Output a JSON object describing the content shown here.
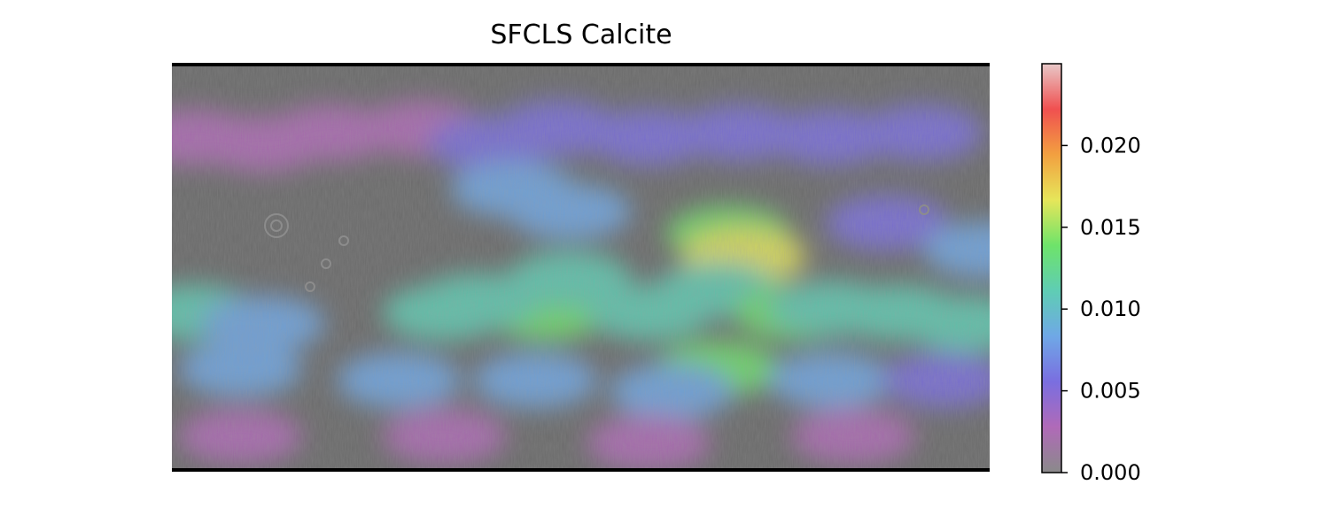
{
  "chart_data": {
    "type": "heatmap",
    "title": "SFCLS Calcite",
    "xlabel": "",
    "ylabel": "",
    "basemap": "grey shaded-relief global map",
    "colorbar": {
      "min": 0.0,
      "max": 0.025,
      "ticks": [
        0.0,
        0.005,
        0.01,
        0.015,
        0.02
      ],
      "tick_labels": [
        "0.000",
        "0.005",
        "0.010",
        "0.015",
        "0.020"
      ],
      "colormap": [
        "#8a8a8a",
        "#b06ab8",
        "#7a6ee0",
        "#6fa8e6",
        "#5fcdb4",
        "#6ee36a",
        "#e6e65a",
        "#f2a040",
        "#f05050",
        "#e8c8c8"
      ]
    },
    "regions": [
      {
        "lon": -170,
        "lat": 58,
        "value": 0.004
      },
      {
        "lon": -140,
        "lat": 55,
        "value": 0.004
      },
      {
        "lon": -110,
        "lat": 60,
        "value": 0.004
      },
      {
        "lon": -70,
        "lat": 62,
        "value": 0.004
      },
      {
        "lon": -40,
        "lat": 55,
        "value": 0.006
      },
      {
        "lon": -10,
        "lat": 62,
        "value": 0.005
      },
      {
        "lon": 30,
        "lat": 58,
        "value": 0.005
      },
      {
        "lon": 70,
        "lat": 60,
        "value": 0.006
      },
      {
        "lon": 110,
        "lat": 58,
        "value": 0.005
      },
      {
        "lon": 150,
        "lat": 60,
        "value": 0.005
      },
      {
        "lon": -30,
        "lat": 35,
        "value": 0.009
      },
      {
        "lon": -5,
        "lat": 25,
        "value": 0.008
      },
      {
        "lon": 135,
        "lat": 20,
        "value": 0.006
      },
      {
        "lon": 178,
        "lat": 8,
        "value": 0.008
      },
      {
        "lon": 65,
        "lat": 15,
        "value": 0.014
      },
      {
        "lon": 72,
        "lat": 5,
        "value": 0.016
      },
      {
        "lon": 60,
        "lat": -10,
        "value": 0.012
      },
      {
        "lon": -10,
        "lat": -10,
        "value": 0.013
      },
      {
        "lon": -15,
        "lat": -20,
        "value": 0.015
      },
      {
        "lon": -5,
        "lat": -5,
        "value": 0.012
      },
      {
        "lon": -45,
        "lat": -15,
        "value": 0.011
      },
      {
        "lon": -60,
        "lat": -20,
        "value": 0.011
      },
      {
        "lon": 30,
        "lat": -20,
        "value": 0.011
      },
      {
        "lon": 95,
        "lat": -20,
        "value": 0.013
      },
      {
        "lon": 110,
        "lat": -18,
        "value": 0.012
      },
      {
        "lon": 140,
        "lat": -20,
        "value": 0.011
      },
      {
        "lon": 170,
        "lat": -25,
        "value": 0.01
      },
      {
        "lon": -170,
        "lat": -20,
        "value": 0.01
      },
      {
        "lon": -140,
        "lat": -25,
        "value": 0.009
      },
      {
        "lon": 60,
        "lat": -45,
        "value": 0.014
      },
      {
        "lon": -150,
        "lat": -45,
        "value": 0.007
      },
      {
        "lon": -80,
        "lat": -50,
        "value": 0.007
      },
      {
        "lon": -20,
        "lat": -50,
        "value": 0.008
      },
      {
        "lon": 40,
        "lat": -55,
        "value": 0.007
      },
      {
        "lon": 110,
        "lat": -50,
        "value": 0.007
      },
      {
        "lon": 160,
        "lat": -50,
        "value": 0.006
      },
      {
        "lon": -150,
        "lat": -75,
        "value": 0.004
      },
      {
        "lon": -60,
        "lat": -75,
        "value": 0.004
      },
      {
        "lon": 30,
        "lat": -78,
        "value": 0.004
      },
      {
        "lon": 120,
        "lat": -75,
        "value": 0.004
      }
    ]
  }
}
